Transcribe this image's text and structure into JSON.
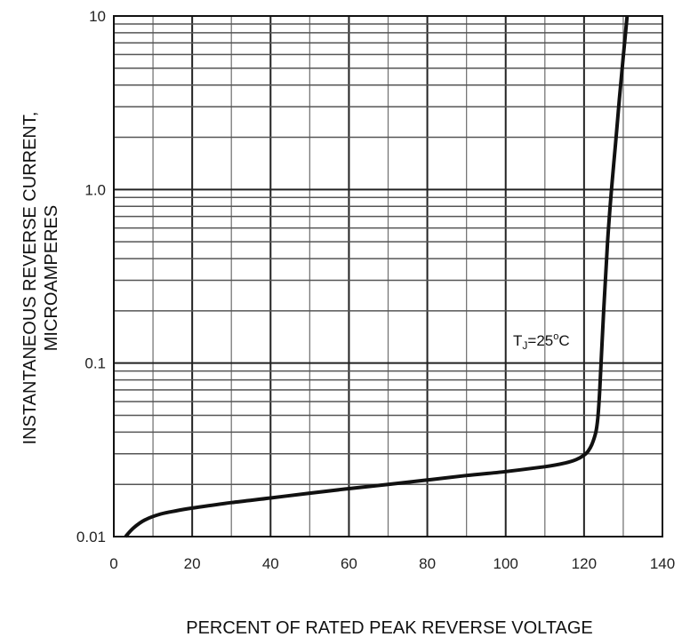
{
  "chart_data": {
    "type": "line",
    "title": "",
    "xlabel": "PERCENT OF RATED PEAK REVERSE VOLTAGE",
    "ylabel_line1": "INSTANTANEOUS REVERSE CURRENT,",
    "ylabel_line2": "MICROAMPERES",
    "xlim": [
      0,
      140
    ],
    "ylim": [
      0.01,
      10
    ],
    "y_scale": "log",
    "grid": true,
    "x_ticks": [
      "0",
      "20",
      "40",
      "60",
      "80",
      "100",
      "120",
      "140"
    ],
    "y_ticks": [
      "0.01",
      "0.1",
      "1.0",
      "10"
    ],
    "annotation": {
      "prefix": "T",
      "subscript": "J",
      "value": "=25",
      "sup": "o",
      "unit": "C"
    },
    "series": [
      {
        "x": [
          3,
          5,
          8,
          12,
          16,
          20,
          30,
          40,
          50,
          60,
          70,
          80,
          90,
          100,
          110,
          115,
          118,
          120,
          121,
          122,
          123,
          123.5,
          124,
          125,
          126,
          127,
          128,
          129,
          130,
          131
        ],
        "y": [
          0.01,
          0.0112,
          0.0125,
          0.0135,
          0.0141,
          0.0146,
          0.0157,
          0.0167,
          0.0178,
          0.0189,
          0.02,
          0.0212,
          0.0225,
          0.0237,
          0.0253,
          0.0265,
          0.0278,
          0.0295,
          0.031,
          0.034,
          0.04,
          0.048,
          0.07,
          0.2,
          0.5,
          1.0,
          1.8,
          3.3,
          5.8,
          10
        ]
      }
    ]
  }
}
